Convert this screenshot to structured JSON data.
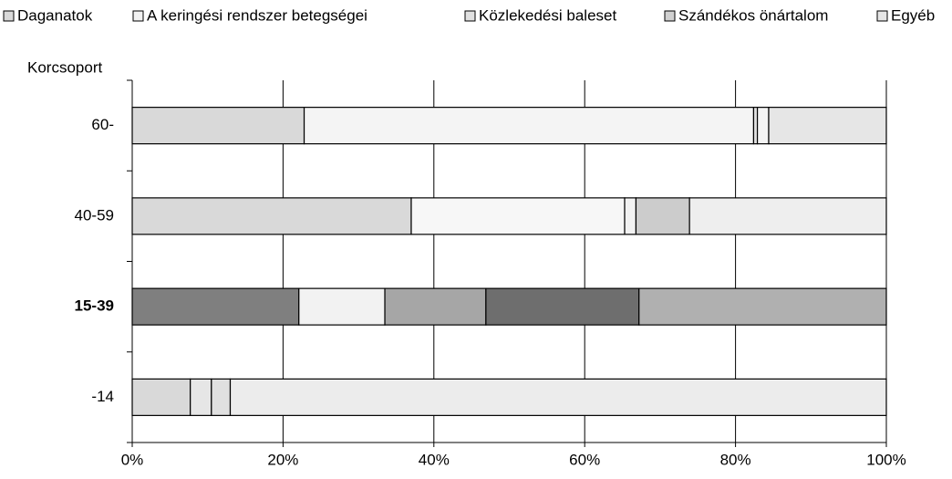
{
  "chart_data": {
    "type": "stacked_bar_horizontal_100",
    "y_axis_label": "Korcsoport",
    "categories": [
      "60-",
      "40-59",
      "15-39",
      "-14"
    ],
    "bold_category": 2,
    "series": [
      {
        "name": "Daganatok",
        "color": "#d9d9d9",
        "colors": [
          "#d9d9d9",
          "#d9d9d9",
          "#7f7f7f",
          "#d9d9d9"
        ],
        "values": [
          22.8,
          37.0,
          22.1,
          7.7
        ]
      },
      {
        "name": "A keringési rendszer betegségei",
        "color": "#f2f2f2",
        "colors": [
          "#f4f4f4",
          "#f7f7f7",
          "#f2f2f2",
          "#e6e6e6"
        ],
        "values": [
          59.6,
          28.3,
          11.4,
          2.8
        ]
      },
      {
        "name": "Közlekedési baleset",
        "color": "#e0e0e0",
        "colors": [
          "#e0e0e0",
          "#f2f2f2",
          "#a6a6a6",
          "#e0e0e0"
        ],
        "values": [
          0.5,
          1.5,
          13.4,
          2.5
        ]
      },
      {
        "name": "Szándékos önártalom",
        "color": "#d0d0d0",
        "colors": [
          "#f4f4f4",
          "#cccccc",
          "#6e6e6e",
          "#d0d0d0"
        ],
        "values": [
          1.5,
          7.1,
          20.3,
          0
        ]
      },
      {
        "name": "Egyéb",
        "color": "#e6e6e6",
        "colors": [
          "#e6e6e6",
          "#eeeeee",
          "#b0b0b0",
          "#ececec"
        ],
        "values": [
          15.6,
          26.1,
          32.8,
          87.0
        ]
      }
    ],
    "xlim": [
      0,
      100
    ],
    "xticks": [
      {
        "value": 0,
        "label": "0%"
      },
      {
        "value": 20,
        "label": "20%"
      },
      {
        "value": 40,
        "label": "40%"
      },
      {
        "value": 60,
        "label": "60%"
      },
      {
        "value": 80,
        "label": "80%"
      },
      {
        "value": 100,
        "label": "100%"
      }
    ],
    "grid": true
  }
}
